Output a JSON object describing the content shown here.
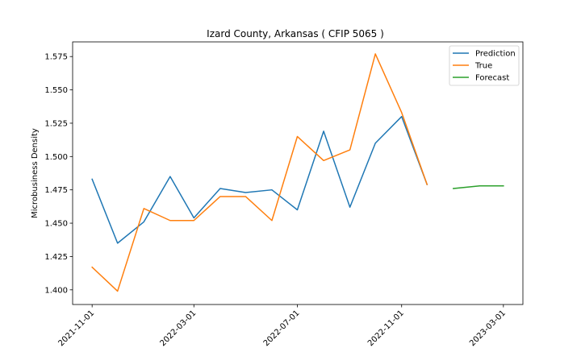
{
  "chart_data": {
    "type": "line",
    "title": "Izard County, Arkansas ( CFIP 5065 )",
    "xlabel": "",
    "ylabel": "Microbusiness Density",
    "xlim": [
      "2021-10-09",
      "2023-03-24"
    ],
    "ylim": [
      1.389,
      1.586
    ],
    "x_ticks": [
      "2021-11-01",
      "2022-03-01",
      "2022-07-01",
      "2022-11-01",
      "2023-03-01"
    ],
    "y_ticks": [
      1.4,
      1.425,
      1.45,
      1.475,
      1.5,
      1.525,
      1.55,
      1.575
    ],
    "y_tick_labels": [
      "1.400",
      "1.425",
      "1.450",
      "1.475",
      "1.500",
      "1.525",
      "1.550",
      "1.575"
    ],
    "grid": false,
    "legend": "top-right",
    "series": [
      {
        "name": "Prediction",
        "color": "#1f77b4",
        "x": [
          "2021-11-01",
          "2021-12-01",
          "2022-01-01",
          "2022-02-01",
          "2022-03-01",
          "2022-04-01",
          "2022-05-01",
          "2022-06-01",
          "2022-07-01",
          "2022-08-01",
          "2022-09-01",
          "2022-10-01",
          "2022-11-01",
          "2022-12-01"
        ],
        "y": [
          1.483,
          1.435,
          1.451,
          1.485,
          1.454,
          1.476,
          1.473,
          1.475,
          1.46,
          1.519,
          1.462,
          1.51,
          1.53,
          1.479
        ]
      },
      {
        "name": "True",
        "color": "#ff7f0e",
        "x": [
          "2021-11-01",
          "2021-12-01",
          "2022-01-01",
          "2022-02-01",
          "2022-03-01",
          "2022-04-01",
          "2022-05-01",
          "2022-06-01",
          "2022-07-01",
          "2022-08-01",
          "2022-09-01",
          "2022-10-01",
          "2022-11-01",
          "2022-12-01"
        ],
        "y": [
          1.417,
          1.399,
          1.461,
          1.452,
          1.452,
          1.47,
          1.47,
          1.452,
          1.515,
          1.497,
          1.505,
          1.577,
          1.533,
          1.479
        ]
      },
      {
        "name": "Forecast",
        "color": "#2ca02c",
        "x": [
          "2023-01-01",
          "2023-02-01",
          "2023-03-01"
        ],
        "y": [
          1.476,
          1.478,
          1.478
        ]
      }
    ]
  }
}
